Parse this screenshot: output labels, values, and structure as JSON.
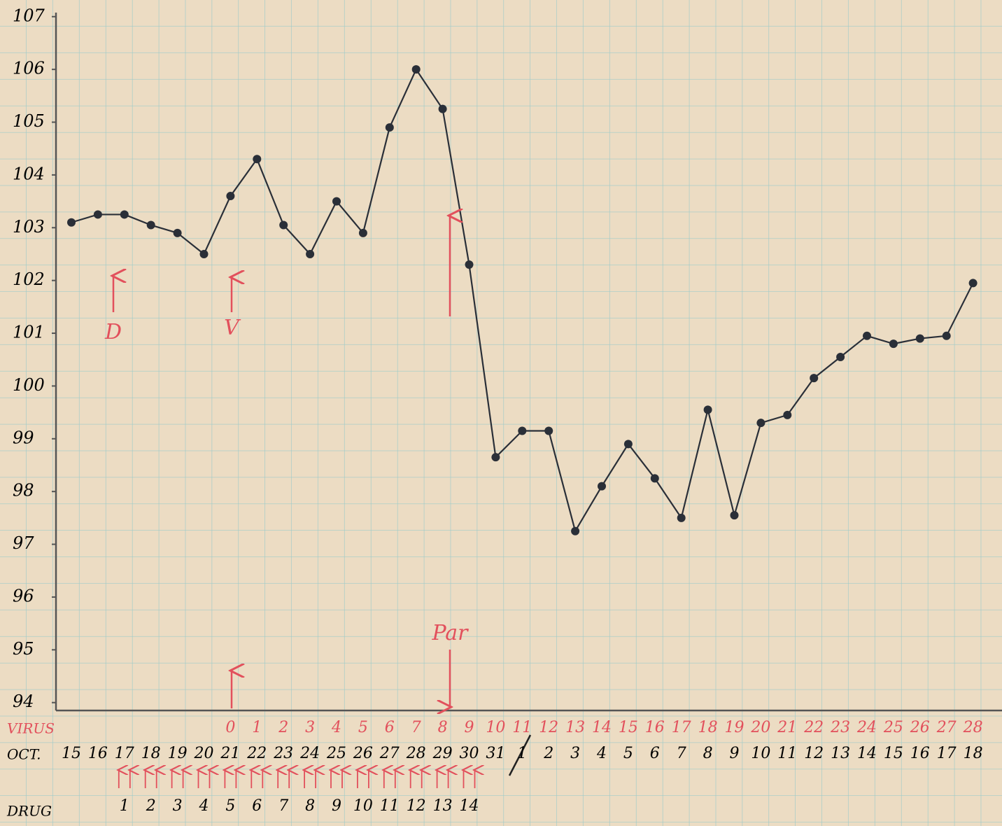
{
  "chart_data": {
    "type": "line",
    "categories": [
      "15",
      "16",
      "17",
      "18",
      "19",
      "20",
      "21",
      "22",
      "23",
      "24",
      "25",
      "26",
      "27",
      "28",
      "29",
      "30",
      "31",
      "1",
      "2",
      "3",
      "4",
      "5",
      "6",
      "7",
      "8",
      "9",
      "10",
      "11",
      "12",
      "13",
      "14",
      "15",
      "16",
      "17",
      "18"
    ],
    "values": [
      103.1,
      103.25,
      103.25,
      103.05,
      102.9,
      102.5,
      103.6,
      104.3,
      103.05,
      102.5,
      103.5,
      102.9,
      104.9,
      106,
      105.25,
      102.3,
      98.65,
      99.15,
      99.15,
      97.25,
      98.1,
      98.9,
      98.25,
      97.5,
      99.55,
      97.55,
      99.3,
      99.45,
      100.15,
      100.55,
      100.95,
      100.8,
      100.9,
      100.95,
      101.95
    ],
    "color": "#2a2f38",
    "ylim": [
      93.85,
      107.05
    ],
    "yticks": [
      94,
      95,
      96,
      97,
      98,
      99,
      100,
      101,
      102,
      103,
      104,
      105,
      106,
      107
    ],
    "grid": true,
    "row_labels": {
      "virus": "VIRUS",
      "date": "OCT.",
      "drug": "DRUG"
    },
    "virus_day": [
      null,
      null,
      null,
      null,
      null,
      null,
      "0",
      "1",
      "2",
      "3",
      "4",
      "5",
      "6",
      "7",
      "8",
      "9",
      "10",
      "11",
      "12",
      "13",
      "14",
      "15",
      "16",
      "17",
      "18",
      "19",
      "20",
      "21",
      "22",
      "23",
      "24",
      "25",
      "26",
      "27",
      "28"
    ],
    "drug_day": [
      null,
      null,
      "1",
      "2",
      "3",
      "4",
      "5",
      "6",
      "7",
      "8",
      "9",
      "10",
      "11",
      "12",
      "13",
      "14",
      null,
      null,
      null,
      null,
      null,
      null,
      null,
      null,
      null,
      null,
      null,
      null,
      null,
      null,
      null,
      null,
      null,
      null,
      null
    ],
    "annotations": [
      {
        "text": "D"
      },
      {
        "text": "V"
      },
      {
        "text": "Par"
      }
    ]
  }
}
